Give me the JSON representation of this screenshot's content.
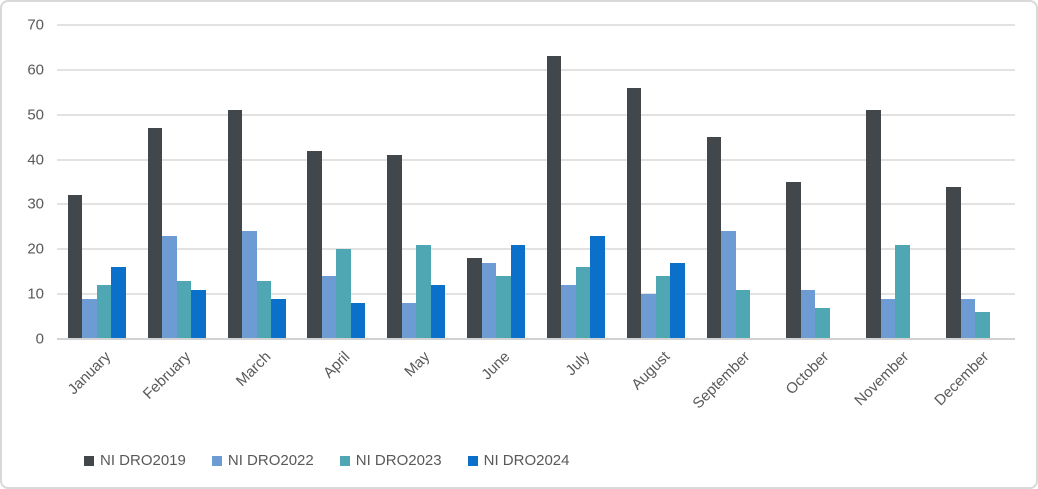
{
  "chart_data": {
    "type": "bar",
    "title": "",
    "xlabel": "",
    "ylabel": "",
    "categories": [
      "January",
      "February",
      "March",
      "April",
      "May",
      "June",
      "July",
      "August",
      "September",
      "October",
      "November",
      "December"
    ],
    "series": [
      {
        "name": "NI DRO2019",
        "color": "#42474B",
        "values": [
          32,
          47,
          51,
          42,
          41,
          18,
          63,
          56,
          45,
          35,
          51,
          34
        ]
      },
      {
        "name": "NI DRO2022",
        "color": "#6D9BD3",
        "values": [
          9,
          23,
          24,
          14,
          8,
          17,
          12,
          10,
          24,
          11,
          9,
          9
        ]
      },
      {
        "name": "NI DRO2023",
        "color": "#4FA7B3",
        "values": [
          12,
          13,
          13,
          20,
          21,
          14,
          16,
          14,
          11,
          7,
          21,
          6
        ]
      },
      {
        "name": "NI DRO2024",
        "color": "#0B70C9",
        "values": [
          16,
          11,
          9,
          8,
          12,
          21,
          23,
          17,
          null,
          null,
          null,
          null
        ]
      }
    ],
    "ylim": [
      0,
      70
    ],
    "y_ticks": [
      0,
      10,
      20,
      30,
      40,
      50,
      60,
      70
    ],
    "grid": "horizontal",
    "legend_position": "bottom-left",
    "category_label_rotation_deg": 45
  },
  "style_colors": {
    "axis_text": "#595959",
    "gridline": "#E2E2E2",
    "axis_line": "#D2D2D2",
    "chart_border": "#D9D9D9",
    "background": "#FFFFFF"
  }
}
